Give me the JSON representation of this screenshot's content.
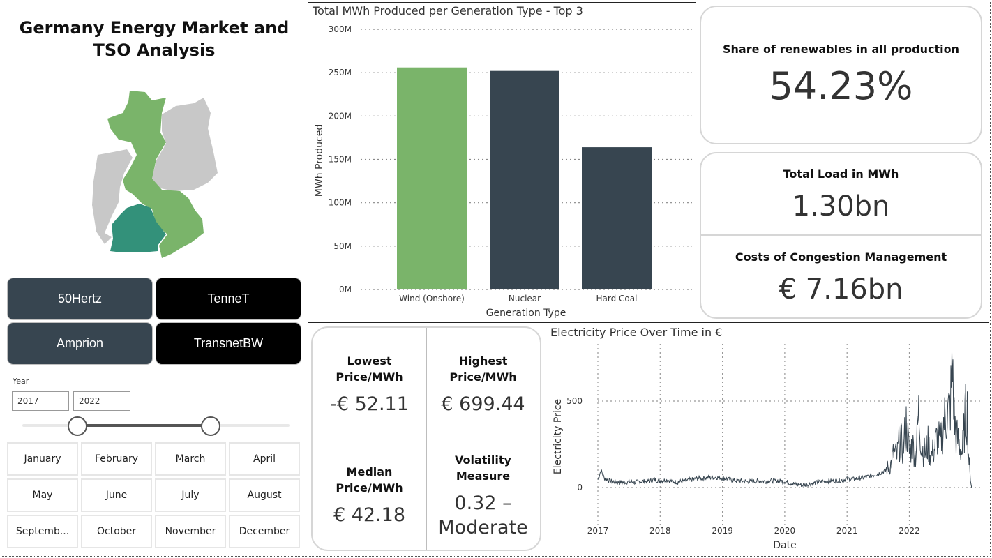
{
  "dashboard": {
    "title": "Germany Energy Market and TSO Analysis"
  },
  "tso_buttons": [
    {
      "label": "50Hertz",
      "color": "#374550"
    },
    {
      "label": "TenneT",
      "color": "#000000"
    },
    {
      "label": "Amprion",
      "color": "#374550"
    },
    {
      "label": "TransnetBW",
      "color": "#000000"
    }
  ],
  "year_filter": {
    "label": "Year",
    "start": "2017",
    "end": "2022"
  },
  "months": [
    "January",
    "February",
    "March",
    "April",
    "May",
    "June",
    "July",
    "August",
    "Septemb...",
    "October",
    "November",
    "December"
  ],
  "map_colors": {
    "selected_green": "#7ab46a",
    "highlight_teal": "#33917a",
    "inactive_grey": "#c8c8c8"
  },
  "kpis": {
    "renewables": {
      "label": "Share of renewables in all production",
      "value": "54.23%"
    },
    "total_load": {
      "label": "Total Load in MWh",
      "value": "1.30bn"
    },
    "congestion": {
      "label": "Costs of Congestion Management",
      "value": "€ 7.16bn"
    }
  },
  "price_stats": {
    "lowest": {
      "label": "Lowest Price/MWh",
      "value": "-€ 52.11"
    },
    "highest": {
      "label": "Highest Price/MWh",
      "value": "€ 699.44"
    },
    "median": {
      "label": "Median Price/MWh",
      "value": "€ 42.18"
    },
    "volatility": {
      "label": "Volatility Measure",
      "value": "0.32 – Moderate"
    }
  },
  "chart_data": [
    {
      "type": "bar",
      "title": "Total MWh Produced per Generation Type - Top 3",
      "xlabel": "Generation Type",
      "ylabel": "MWh Produced",
      "categories": [
        "Wind (Onshore)",
        "Nuclear",
        "Hard Coal"
      ],
      "values": [
        256000000,
        252000000,
        164000000
      ],
      "colors": [
        "#7ab46a",
        "#374550",
        "#374550"
      ],
      "ylim": [
        0,
        300000000
      ],
      "yticks": [
        0,
        50000000,
        100000000,
        150000000,
        200000000,
        250000000,
        300000000
      ],
      "ytick_labels": [
        "0M",
        "50M",
        "100M",
        "150M",
        "200M",
        "250M",
        "300M"
      ],
      "grid": true
    },
    {
      "type": "line",
      "title": "Electricity Price Over Time in €",
      "xlabel": "Date",
      "ylabel": "Electricity Price",
      "x_tick_labels": [
        "2017",
        "2018",
        "2019",
        "2020",
        "2021",
        "2022"
      ],
      "yticks": [
        0,
        500
      ],
      "ylim": [
        -150,
        750
      ],
      "color": "#374550",
      "grid": true,
      "series": [
        {
          "values": [
            [
              2017.0,
              45
            ],
            [
              2017.05,
              100
            ],
            [
              2017.1,
              55
            ],
            [
              2017.2,
              38
            ],
            [
              2017.3,
              32
            ],
            [
              2017.4,
              30
            ],
            [
              2017.5,
              33
            ],
            [
              2017.6,
              30
            ],
            [
              2017.7,
              36
            ],
            [
              2017.8,
              35
            ],
            [
              2017.9,
              45
            ],
            [
              2018.0,
              38
            ],
            [
              2018.1,
              45
            ],
            [
              2018.2,
              35
            ],
            [
              2018.3,
              32
            ],
            [
              2018.4,
              40
            ],
            [
              2018.5,
              45
            ],
            [
              2018.6,
              52
            ],
            [
              2018.7,
              55
            ],
            [
              2018.8,
              58
            ],
            [
              2018.9,
              60
            ],
            [
              2019.0,
              55
            ],
            [
              2019.1,
              48
            ],
            [
              2019.2,
              40
            ],
            [
              2019.3,
              38
            ],
            [
              2019.4,
              35
            ],
            [
              2019.5,
              36
            ],
            [
              2019.6,
              38
            ],
            [
              2019.7,
              36
            ],
            [
              2019.8,
              40
            ],
            [
              2019.9,
              38
            ],
            [
              2020.0,
              35
            ],
            [
              2020.1,
              25
            ],
            [
              2020.2,
              18
            ],
            [
              2020.3,
              15
            ],
            [
              2020.4,
              20
            ],
            [
              2020.5,
              28
            ],
            [
              2020.6,
              35
            ],
            [
              2020.7,
              38
            ],
            [
              2020.8,
              40
            ],
            [
              2020.9,
              42
            ],
            [
              2021.0,
              50
            ],
            [
              2021.1,
              48
            ],
            [
              2021.2,
              55
            ],
            [
              2021.3,
              60
            ],
            [
              2021.4,
              70
            ],
            [
              2021.5,
              80
            ],
            [
              2021.6,
              95
            ],
            [
              2021.7,
              130
            ],
            [
              2021.75,
              200
            ],
            [
              2021.8,
              180
            ],
            [
              2021.85,
              280
            ],
            [
              2021.9,
              220
            ],
            [
              2021.95,
              370
            ],
            [
              2022.0,
              200
            ],
            [
              2022.05,
              250
            ],
            [
              2022.1,
              180
            ],
            [
              2022.15,
              430
            ],
            [
              2022.2,
              230
            ],
            [
              2022.25,
              200
            ],
            [
              2022.3,
              250
            ],
            [
              2022.35,
              180
            ],
            [
              2022.4,
              220
            ],
            [
              2022.45,
              300
            ],
            [
              2022.5,
              250
            ],
            [
              2022.55,
              380
            ],
            [
              2022.6,
              420
            ],
            [
              2022.65,
              450
            ],
            [
              2022.7,
              699
            ],
            [
              2022.72,
              400
            ],
            [
              2022.75,
              300
            ],
            [
              2022.8,
              250
            ],
            [
              2022.85,
              200
            ],
            [
              2022.9,
              420
            ],
            [
              2022.93,
              440
            ],
            [
              2022.95,
              200
            ],
            [
              2022.98,
              50
            ],
            [
              2023.0,
              0
            ]
          ]
        }
      ]
    }
  ]
}
